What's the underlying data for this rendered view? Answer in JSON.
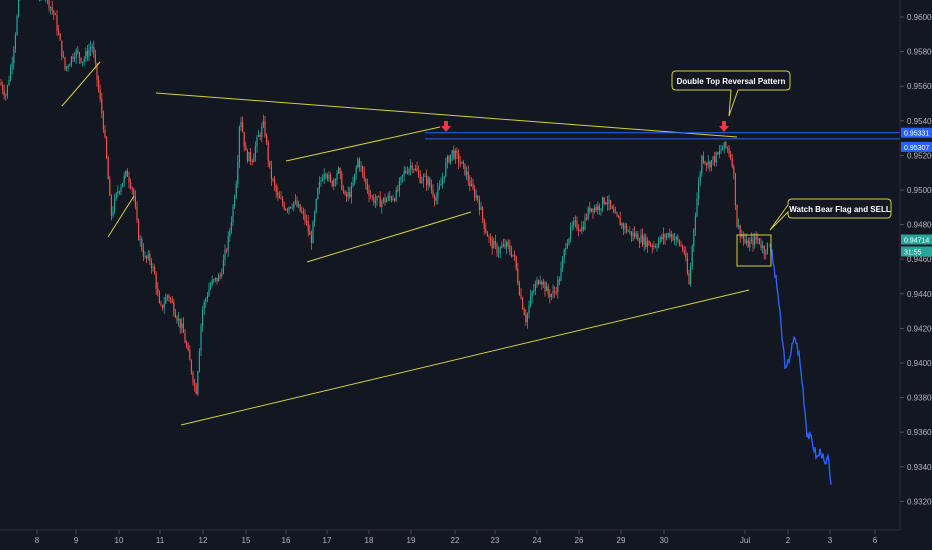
{
  "chart_data": {
    "type": "candlestick",
    "y_axis": {
      "ticks": [
        "0.96000",
        "0.95800",
        "0.95600",
        "0.95400",
        "0.95200",
        "0.95000",
        "0.94800",
        "0.94600",
        "0.94400",
        "0.94200",
        "0.94000",
        "0.93800",
        "0.93600",
        "0.93400",
        "0.93200"
      ],
      "values": [
        0.96,
        0.958,
        0.956,
        0.954,
        0.952,
        0.95,
        0.948,
        0.946,
        0.944,
        0.942,
        0.94,
        0.938,
        0.936,
        0.934,
        0.932
      ],
      "range": [
        0.9316,
        0.9614
      ]
    },
    "x_axis": {
      "ticks": [
        "8",
        "9",
        "10",
        "11",
        "12",
        "15",
        "16",
        "17",
        "18",
        "19",
        "22",
        "23",
        "24",
        "26",
        "29",
        "30",
        "Jul",
        "2",
        "3",
        "6"
      ]
    },
    "price_labels": [
      {
        "text": "0.95331",
        "value": 0.95331,
        "color": "#2962ff"
      },
      {
        "text": "0.95307",
        "value": 0.95307,
        "color": "#2962ff"
      },
      {
        "text": "0.94714",
        "value": 0.94714,
        "color": "#26a69a"
      },
      {
        "text": "31:55",
        "value": 0.9465,
        "color": "#26a69a"
      }
    ],
    "annotations": [
      {
        "text": "Double Top Reversal Pattern"
      },
      {
        "text": "Watch Bear Flag and SELL"
      }
    ],
    "path": [
      [
        0,
        0.9562
      ],
      [
        6,
        0.9555
      ],
      [
        12,
        0.9575
      ],
      [
        20,
        0.9614
      ],
      [
        30,
        0.9614
      ],
      [
        45,
        0.9614
      ],
      [
        55,
        0.96
      ],
      [
        65,
        0.957
      ],
      [
        75,
        0.958
      ],
      [
        83,
        0.9575
      ],
      [
        92,
        0.9584
      ],
      [
        97,
        0.9564
      ],
      [
        103,
        0.954
      ],
      [
        107,
        0.9515
      ],
      [
        111,
        0.9485
      ],
      [
        118,
        0.95
      ],
      [
        127,
        0.951
      ],
      [
        133,
        0.95
      ],
      [
        138,
        0.9475
      ],
      [
        145,
        0.946
      ],
      [
        150,
        0.946
      ],
      [
        155,
        0.945
      ],
      [
        160,
        0.943
      ],
      [
        168,
        0.944
      ],
      [
        175,
        0.943
      ],
      [
        183,
        0.9418
      ],
      [
        190,
        0.94
      ],
      [
        196,
        0.9383
      ],
      [
        202,
        0.943
      ],
      [
        210,
        0.9445
      ],
      [
        220,
        0.945
      ],
      [
        228,
        0.947
      ],
      [
        233,
        0.949
      ],
      [
        237,
        0.951
      ],
      [
        240,
        0.9545
      ],
      [
        246,
        0.952
      ],
      [
        252,
        0.9518
      ],
      [
        258,
        0.953
      ],
      [
        264,
        0.9538
      ],
      [
        270,
        0.951
      ],
      [
        278,
        0.9495
      ],
      [
        286,
        0.949
      ],
      [
        294,
        0.9493
      ],
      [
        300,
        0.9488
      ],
      [
        306,
        0.9482
      ],
      [
        311,
        0.947
      ],
      [
        318,
        0.95
      ],
      [
        325,
        0.9513
      ],
      [
        331,
        0.9503
      ],
      [
        338,
        0.9512
      ],
      [
        345,
        0.9495
      ],
      [
        352,
        0.95
      ],
      [
        358,
        0.9518
      ],
      [
        366,
        0.9503
      ],
      [
        372,
        0.9495
      ],
      [
        380,
        0.9493
      ],
      [
        388,
        0.9495
      ],
      [
        396,
        0.9497
      ],
      [
        404,
        0.951
      ],
      [
        412,
        0.9515
      ],
      [
        420,
        0.9507
      ],
      [
        428,
        0.9505
      ],
      [
        436,
        0.9495
      ],
      [
        442,
        0.9505
      ],
      [
        446,
        0.9515
      ],
      [
        452,
        0.9522
      ],
      [
        458,
        0.9518
      ],
      [
        466,
        0.951
      ],
      [
        472,
        0.95
      ],
      [
        478,
        0.9495
      ],
      [
        484,
        0.948
      ],
      [
        490,
        0.947
      ],
      [
        498,
        0.9465
      ],
      [
        506,
        0.9468
      ],
      [
        514,
        0.9462
      ],
      [
        520,
        0.944
      ],
      [
        526,
        0.9425
      ],
      [
        532,
        0.944
      ],
      [
        540,
        0.945
      ],
      [
        548,
        0.944
      ],
      [
        554,
        0.944
      ],
      [
        560,
        0.945
      ],
      [
        566,
        0.947
      ],
      [
        574,
        0.948
      ],
      [
        582,
        0.9478
      ],
      [
        590,
        0.949
      ],
      [
        598,
        0.949
      ],
      [
        606,
        0.9495
      ],
      [
        614,
        0.9485
      ],
      [
        622,
        0.948
      ],
      [
        630,
        0.9475
      ],
      [
        638,
        0.9473
      ],
      [
        646,
        0.947
      ],
      [
        654,
        0.9468
      ],
      [
        662,
        0.9472
      ],
      [
        670,
        0.9475
      ],
      [
        678,
        0.947
      ],
      [
        684,
        0.9465
      ],
      [
        689,
        0.9445
      ],
      [
        694,
        0.948
      ],
      [
        698,
        0.95
      ],
      [
        702,
        0.952
      ],
      [
        708,
        0.9515
      ],
      [
        714,
        0.9518
      ],
      [
        718,
        0.952
      ],
      [
        723,
        0.9525
      ],
      [
        728,
        0.9524
      ],
      [
        733,
        0.9515
      ],
      [
        737,
        0.948
      ],
      [
        741,
        0.9475
      ],
      [
        746,
        0.9468
      ],
      [
        752,
        0.947
      ],
      [
        758,
        0.9472
      ],
      [
        764,
        0.9465
      ],
      [
        770,
        0.947
      ]
    ],
    "forecast": [
      [
        770,
        0.947
      ],
      [
        774,
        0.9455
      ],
      [
        778,
        0.944
      ],
      [
        782,
        0.9415
      ],
      [
        786,
        0.9395
      ],
      [
        790,
        0.9405
      ],
      [
        795,
        0.9415
      ],
      [
        799,
        0.9405
      ],
      [
        803,
        0.9385
      ],
      [
        807,
        0.936
      ],
      [
        812,
        0.9355
      ],
      [
        817,
        0.9345
      ],
      [
        821,
        0.935
      ],
      [
        825,
        0.934
      ],
      [
        829,
        0.9345
      ],
      [
        832,
        0.9318
      ]
    ]
  }
}
